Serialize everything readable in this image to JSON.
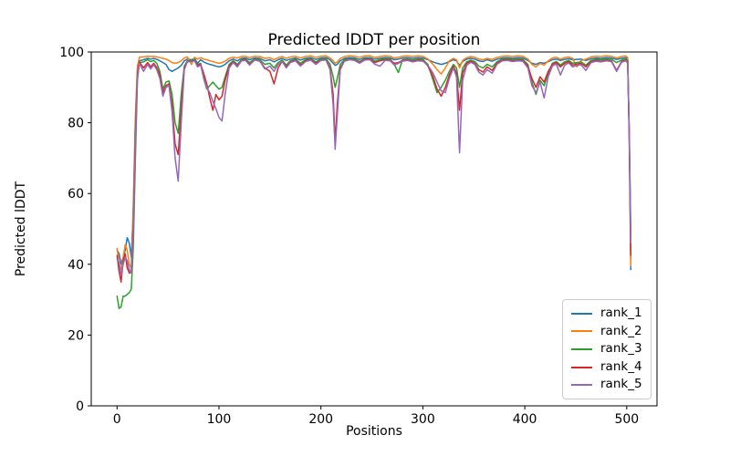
{
  "figure": {
    "title": "Predicted lDDT per position",
    "xlabel": "Positions",
    "ylabel": "Predicted lDDT"
  },
  "chart_data": {
    "type": "line",
    "title": "Predicted lDDT per position",
    "xlabel": "Positions",
    "ylabel": "Predicted lDDT",
    "xlim": [
      -25.3,
      529.7
    ],
    "ylim": [
      0,
      100
    ],
    "xticks": [
      0,
      100,
      200,
      300,
      400,
      500
    ],
    "yticks": [
      0,
      20,
      40,
      60,
      80,
      100
    ],
    "grid": false,
    "legend_position": "lower right",
    "background": "#ffffff",
    "spine_color": "#000000",
    "x": [
      0,
      2,
      4,
      6,
      8,
      10,
      12,
      14,
      16,
      18,
      20,
      22,
      26,
      30,
      33,
      36,
      39,
      42,
      45,
      48,
      51,
      54,
      57,
      60,
      63,
      66,
      69,
      73,
      76,
      79,
      82,
      85,
      88,
      91,
      94,
      97,
      100,
      103,
      106,
      110,
      114,
      118,
      122,
      126,
      130,
      135,
      140,
      145,
      150,
      154,
      158,
      162,
      166,
      170,
      175,
      180,
      185,
      190,
      195,
      200,
      205,
      209,
      212,
      214,
      216,
      219,
      223,
      228,
      233,
      238,
      243,
      248,
      253,
      258,
      263,
      268,
      272,
      276,
      280,
      285,
      290,
      295,
      300,
      305,
      310,
      314,
      318,
      322,
      326,
      330,
      333,
      336,
      339,
      343,
      347,
      351,
      355,
      359,
      363,
      368,
      373,
      378,
      383,
      388,
      393,
      398,
      403,
      407,
      411,
      415,
      419,
      423,
      427,
      431,
      435,
      439,
      443,
      447,
      451,
      455,
      460,
      465,
      470,
      475,
      480,
      485,
      490,
      495,
      499,
      501,
      502.5,
      504
    ],
    "series": [
      {
        "name": "rank_1",
        "color": "#1f77b4",
        "values": [
          44,
          43,
          40,
          42,
          44,
          47.5,
          46,
          42,
          55,
          80,
          95,
          97.5,
          97.8,
          98.2,
          98,
          98.2,
          97.9,
          97.5,
          97,
          96.5,
          95,
          94.5,
          95,
          95.5,
          96.2,
          97.5,
          98,
          97.8,
          98.2,
          96.8,
          97.8,
          97.2,
          96.8,
          96.5,
          96.3,
          96,
          95.8,
          96,
          96.5,
          97.5,
          98,
          97.5,
          98.2,
          98.3,
          97.8,
          98.3,
          98.2,
          97.5,
          97.8,
          97.2,
          97.8,
          98.2,
          97.6,
          98,
          98.3,
          97.7,
          98.2,
          98.4,
          97.9,
          98.3,
          98.4,
          97.8,
          96.8,
          96.2,
          96.5,
          97.5,
          98.2,
          98.4,
          98.3,
          97.9,
          98.4,
          98.4,
          98,
          98.2,
          98.4,
          98.3,
          97.8,
          98,
          98.3,
          98.4,
          98.2,
          98.4,
          98.3,
          97.8,
          97.2,
          96.8,
          96.5,
          96.8,
          97.3,
          97.8,
          97.5,
          96.2,
          97.3,
          98,
          98.2,
          98,
          97.5,
          97.3,
          97.8,
          97.4,
          98,
          98.3,
          98.4,
          98.2,
          98.4,
          98.3,
          97.6,
          96.8,
          96.5,
          97,
          96.8,
          97.3,
          97.8,
          98,
          97.6,
          97.9,
          98.1,
          97.8,
          97.9,
          98,
          97.6,
          98.1,
          98.3,
          98.2,
          98.4,
          98.3,
          97.9,
          98.2,
          98.4,
          97.8,
          75,
          38.5
        ]
      },
      {
        "name": "rank_2",
        "color": "#ff7f0e",
        "values": [
          44.5,
          40,
          38.5,
          42,
          45.5,
          44,
          40,
          39,
          57,
          82,
          96,
          98.5,
          98.6,
          98.8,
          98.7,
          98.8,
          98.6,
          98.4,
          98.2,
          98,
          97.6,
          97,
          96.8,
          97,
          97.5,
          98.3,
          98.6,
          96.5,
          98.5,
          98,
          98.4,
          98,
          97.8,
          97.5,
          97.3,
          97,
          96.8,
          97,
          97.4,
          98.2,
          98.5,
          98.3,
          98.7,
          98.8,
          98.4,
          98.8,
          98.7,
          98.2,
          98.4,
          97.8,
          98.4,
          98.7,
          98.2,
          98.6,
          98.8,
          98.3,
          98.7,
          98.9,
          98.5,
          98.8,
          98.9,
          98.3,
          97.5,
          96.8,
          97.2,
          98.2,
          98.7,
          98.9,
          98.8,
          98.5,
          98.9,
          98.9,
          98.5,
          98.7,
          98.9,
          98.8,
          98.3,
          98.5,
          98.8,
          98.9,
          98.7,
          98.9,
          98.8,
          98,
          96.5,
          95,
          93.8,
          95.5,
          97.5,
          98.2,
          97.8,
          95.5,
          97.6,
          98.4,
          98.7,
          98.5,
          98,
          97.8,
          98.2,
          97.9,
          98.5,
          98.8,
          98.9,
          98.7,
          98.9,
          98.8,
          98,
          96.5,
          95.8,
          96.8,
          96.3,
          97.5,
          98.3,
          98.5,
          98,
          98.4,
          98.6,
          98.2,
          95.8,
          97.5,
          98,
          98.6,
          98.8,
          98.7,
          98.9,
          98.8,
          98.3,
          98.7,
          98.9,
          98.4,
          76,
          39.5
        ]
      },
      {
        "name": "rank_3",
        "color": "#2ca02c",
        "values": [
          31,
          27.5,
          28,
          31,
          31,
          31.5,
          32,
          33,
          45,
          70,
          92,
          97,
          97.2,
          97.8,
          97.3,
          97.6,
          96.8,
          94.5,
          89.5,
          91.5,
          91.8,
          88,
          80,
          77,
          88,
          96,
          97.5,
          97.6,
          97.8,
          96.5,
          96.8,
          92.5,
          89.5,
          90.5,
          91.5,
          90.5,
          89.5,
          90,
          93,
          96.5,
          97.5,
          96.5,
          97.8,
          98,
          97,
          98,
          97.8,
          96.5,
          96.8,
          95.5,
          97,
          97.7,
          96.3,
          97.5,
          98,
          96.8,
          97.8,
          98.1,
          97.2,
          98,
          98.1,
          96.5,
          93,
          90,
          92.5,
          96.5,
          97.8,
          98.1,
          98,
          97.3,
          98.1,
          98.2,
          97.4,
          97.8,
          98.1,
          98,
          96.5,
          94.2,
          97.8,
          98,
          97.7,
          98,
          97.9,
          96.5,
          92,
          88.5,
          90,
          92,
          94.5,
          96.5,
          95.5,
          90,
          95.5,
          97.2,
          97.7,
          97.3,
          96,
          95.5,
          96.5,
          95.8,
          97.3,
          98,
          98.1,
          97.8,
          98,
          97.9,
          96.5,
          91.5,
          88,
          92,
          90.5,
          94,
          96.8,
          97.3,
          96.3,
          97.2,
          97.6,
          96.8,
          97,
          97.2,
          96.3,
          97.6,
          97.9,
          97.8,
          98,
          97.9,
          97,
          97.7,
          98,
          97.5,
          78,
          48
        ]
      },
      {
        "name": "rank_4",
        "color": "#d62728",
        "values": [
          42.5,
          38,
          35,
          41,
          43,
          39,
          37.5,
          38,
          52,
          78,
          94,
          97.2,
          95.5,
          97,
          95.8,
          96.8,
          95.6,
          93.5,
          88.5,
          90.5,
          91,
          85,
          74,
          71,
          84,
          95.5,
          97.3,
          97.4,
          97.6,
          96.2,
          96.5,
          94,
          91,
          87,
          83.5,
          88,
          86.5,
          87.5,
          92,
          96,
          97.3,
          96,
          97.6,
          97.8,
          96.5,
          97.8,
          97.5,
          95.5,
          94.5,
          91,
          95.5,
          97.4,
          95.8,
          97.2,
          97.7,
          96.3,
          97.5,
          97.9,
          96.8,
          97.7,
          97.8,
          95.5,
          88,
          74.5,
          85,
          95.5,
          97.5,
          97.9,
          97.7,
          97,
          97.9,
          98,
          97,
          97.5,
          97.8,
          97.7,
          96.8,
          97,
          97.6,
          97.8,
          97.4,
          97.7,
          97.6,
          96,
          93,
          89.5,
          87.5,
          90,
          93.5,
          96,
          94,
          83.5,
          94,
          96.8,
          97.4,
          96.8,
          95,
          94.3,
          95.8,
          94.8,
          96.9,
          97.7,
          97.8,
          97.5,
          97.7,
          97.6,
          96,
          92.5,
          90,
          93,
          91.5,
          94.5,
          96.5,
          97,
          95.8,
          96.8,
          97.3,
          96.3,
          96.6,
          96.8,
          95.8,
          97.3,
          97.6,
          97.4,
          97.7,
          97.5,
          94.8,
          97.3,
          97.7,
          97,
          76,
          42.5
        ]
      },
      {
        "name": "rank_5",
        "color": "#9467bd",
        "values": [
          41.5,
          40.5,
          37,
          40,
          42,
          41,
          38.5,
          37.5,
          50,
          75,
          93,
          96.8,
          94.5,
          96.5,
          95.2,
          96.4,
          95,
          92.5,
          87.5,
          90,
          90.5,
          83,
          70,
          63.5,
          80,
          95,
          97.2,
          97.3,
          97.5,
          95.8,
          96.3,
          92.8,
          90,
          88.5,
          86,
          84,
          81.5,
          80.5,
          88,
          95.5,
          97,
          95.8,
          97.5,
          97.6,
          96.3,
          97.7,
          97.4,
          95.2,
          96,
          94.5,
          96.5,
          97.3,
          95.5,
          97,
          97.5,
          96,
          97.3,
          97.7,
          96.5,
          97.6,
          97.7,
          95,
          85,
          72.5,
          82,
          95,
          97.4,
          97.8,
          97.6,
          96.8,
          97.7,
          97.8,
          96.5,
          96,
          97.6,
          97.5,
          96.3,
          96.8,
          97.4,
          97.6,
          97.2,
          97.5,
          97.4,
          96.2,
          94,
          91.5,
          89,
          88.5,
          92.5,
          95.5,
          93,
          71.5,
          92,
          96.2,
          97.1,
          96.5,
          94.3,
          93.5,
          95,
          94,
          96.6,
          97.5,
          97.6,
          97.3,
          97.5,
          97.4,
          95.5,
          90.5,
          88.5,
          91.5,
          87,
          93,
          96,
          96.6,
          93.5,
          96.2,
          96.9,
          95.8,
          96.2,
          96.4,
          94.8,
          97,
          97.4,
          97.2,
          97.5,
          97.3,
          94.5,
          97.1,
          97.5,
          96.8,
          77,
          46
        ]
      }
    ]
  },
  "legend": {
    "labels": [
      "rank_1",
      "rank_2",
      "rank_3",
      "rank_4",
      "rank_5"
    ]
  }
}
